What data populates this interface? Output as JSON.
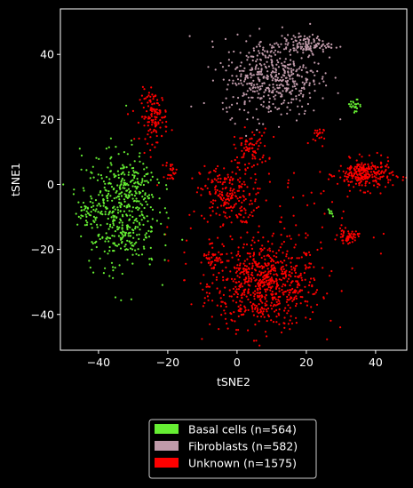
{
  "chart_data": {
    "type": "scatter",
    "title": "",
    "xlabel": "tSNE2",
    "ylabel": "tSNE1",
    "xlim": [
      -51,
      49
    ],
    "ylim": [
      -51,
      54
    ],
    "xticks": [
      -40,
      -20,
      0,
      20,
      40
    ],
    "yticks": [
      -40,
      -20,
      0,
      20,
      40
    ],
    "xtick_labels": [
      "−40",
      "−20",
      "0",
      "20",
      "40"
    ],
    "ytick_labels": [
      "−40",
      "−20",
      "0",
      "20",
      "40"
    ],
    "background": "#000000",
    "legend_placement": "below plot, centered",
    "series": [
      {
        "name": "Basal cells (n=564)",
        "color": "#66ee33",
        "n": 564,
        "clusters": [
          {
            "cx": -34,
            "cy": -8,
            "sx": 5.5,
            "sy": 9,
            "n": 480
          },
          {
            "cx": -29,
            "cy": 2,
            "sx": 2.5,
            "sy": 2.5,
            "n": 40
          },
          {
            "cx": -44,
            "cy": -8,
            "sx": 1.2,
            "sy": 1.2,
            "n": 14
          },
          {
            "cx": 34,
            "cy": 24,
            "sx": 0.9,
            "sy": 1.1,
            "n": 22
          },
          {
            "cx": 27,
            "cy": -9,
            "sx": 0.3,
            "sy": 0.6,
            "n": 8
          }
        ]
      },
      {
        "name": "Fibroblasts (n=582)",
        "color": "#c09aaa",
        "n": 582,
        "clusters": [
          {
            "cx": 10,
            "cy": 33,
            "sx": 7,
            "sy": 6,
            "n": 470
          },
          {
            "cx": 20,
            "cy": 43,
            "sx": 3.5,
            "sy": 1.5,
            "n": 112
          }
        ]
      },
      {
        "name": "Unknown (n=1575)",
        "color": "#ff0000",
        "n": 1575,
        "clusters": [
          {
            "cx": 8,
            "cy": -31,
            "sx": 8,
            "sy": 6.5,
            "n": 700
          },
          {
            "cx": -3,
            "cy": -3,
            "sx": 3.8,
            "sy": 4.5,
            "n": 200
          },
          {
            "cx": 4,
            "cy": 11,
            "sx": 2.5,
            "sy": 3,
            "n": 80
          },
          {
            "cx": -24,
            "cy": 21,
            "sx": 2,
            "sy": 4,
            "n": 130
          },
          {
            "cx": 37,
            "cy": 3,
            "sx": 4,
            "sy": 2.3,
            "n": 250
          },
          {
            "cx": 32,
            "cy": -16,
            "sx": 1.5,
            "sy": 1,
            "n": 50
          },
          {
            "cx": -19,
            "cy": 4,
            "sx": 0.8,
            "sy": 1.5,
            "n": 25
          },
          {
            "cx": -7,
            "cy": -22,
            "sx": 1.5,
            "sy": 2.5,
            "n": 40
          },
          {
            "cx": 23,
            "cy": 15,
            "sx": 1,
            "sy": 1.5,
            "n": 20
          },
          {
            "cx": 8,
            "cy": -13,
            "sx": 12,
            "sy": 8,
            "n": 80
          }
        ]
      }
    ]
  }
}
